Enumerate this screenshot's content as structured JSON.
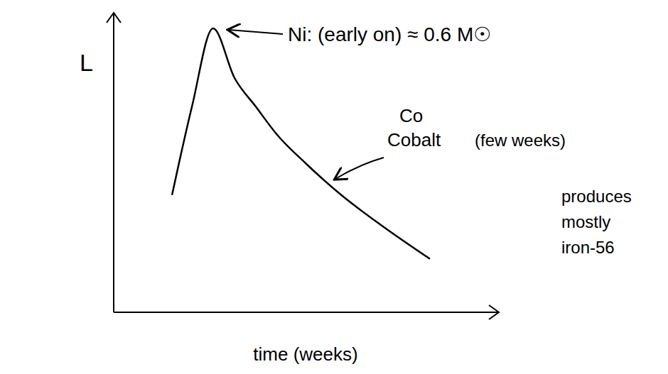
{
  "chart_data": {
    "type": "line",
    "x_label": "time (weeks)",
    "y_label": "L",
    "x": [
      1.52,
      2.04,
      2.59,
      3.15,
      3.7,
      4.26,
      5.0,
      5.93,
      7.04,
      8.24
    ],
    "values": [
      4.13,
      7.25,
      10.0,
      8.25,
      7.25,
      6.25,
      5.25,
      4.13,
      3.0,
      1.88
    ],
    "color": "#000000",
    "xlim": [
      0,
      10
    ],
    "ylim": [
      0,
      10.5
    ],
    "grid": false,
    "tick_labels": false,
    "annotations": [
      "Ni: (early on) ≈ 0.6 M☉",
      "Co",
      "Cobalt",
      "(few weeks)",
      "produces mostly iron-56"
    ]
  }
}
